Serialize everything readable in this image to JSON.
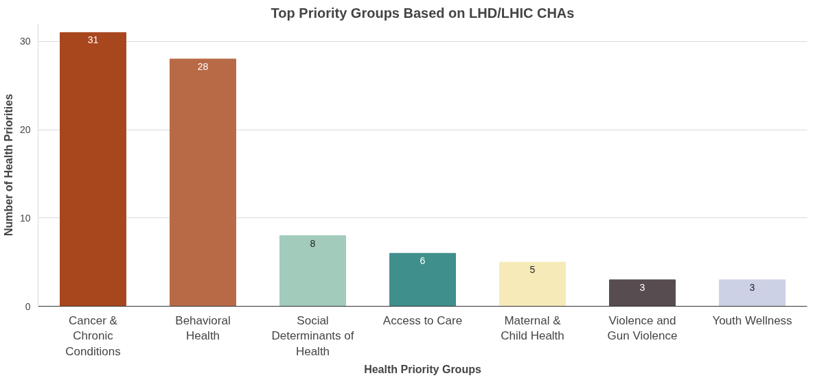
{
  "chart_data": {
    "type": "bar",
    "title": "Top Priority Groups Based on LHD/LHIC CHAs",
    "xlabel": "Health Priority Groups",
    "ylabel": "Number of Health Priorities",
    "categories": [
      "Cancer & Chronic Conditions",
      "Behavioral Health",
      "Social Determinants of Health",
      "Access to Care",
      "Maternal & Child Health",
      "Violence and Gun Violence",
      "Youth Wellness"
    ],
    "values": [
      31,
      28,
      8,
      6,
      5,
      3,
      3
    ],
    "colors": [
      "#a8461e",
      "#b86a47",
      "#a2cbbb",
      "#3f8f8c",
      "#f5eab8",
      "#574c50",
      "#cdd1e6"
    ],
    "ylim": [
      0,
      32
    ],
    "yticks": [
      0,
      10,
      20,
      30
    ],
    "grid": "y",
    "data_labels": true
  }
}
